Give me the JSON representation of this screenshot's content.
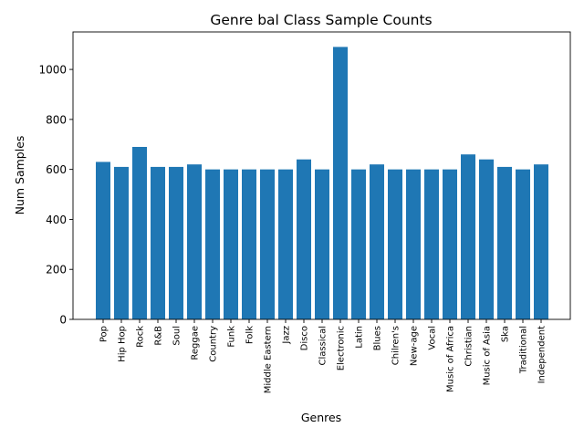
{
  "chart_data": {
    "type": "bar",
    "title": "Genre bal Class Sample Counts",
    "xlabel": "Genres",
    "ylabel": "Num Samples",
    "ylim": [
      0,
      1150
    ],
    "yticks": [
      0,
      200,
      400,
      600,
      800,
      1000
    ],
    "bar_color": "#1f77b4",
    "grid": false,
    "legend": "none",
    "categories": [
      "Pop",
      "Hip Hop",
      "Rock",
      "R&B",
      "Soul",
      "Reggae",
      "Country",
      "Funk",
      "Folk",
      "Middle Eastern",
      "Jazz",
      "Disco",
      "Classical",
      "Electronic",
      "Latin",
      "Blues",
      "Chilren's",
      "New-age",
      "Vocal",
      "Music of Africa",
      "Christian",
      "Music of Asia",
      "Ska",
      "Traditional",
      "Independent"
    ],
    "values": [
      630,
      610,
      690,
      610,
      610,
      620,
      600,
      600,
      600,
      600,
      600,
      640,
      600,
      1090,
      600,
      620,
      600,
      600,
      600,
      600,
      660,
      640,
      610,
      600,
      620
    ]
  }
}
